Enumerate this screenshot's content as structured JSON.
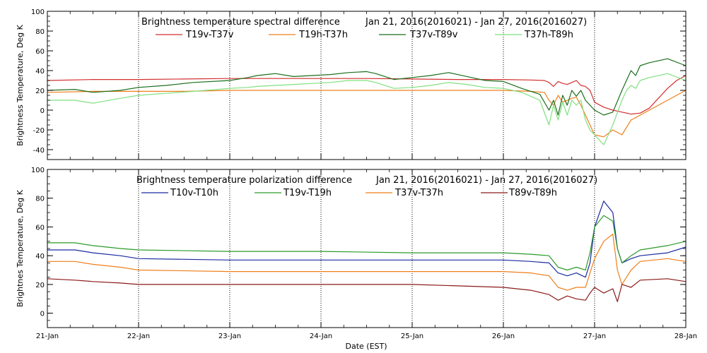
{
  "x_axis": {
    "label": "Date (EST)",
    "ticks": [
      "21-Jan",
      "22-Jan",
      "23-Jan",
      "24-Jan",
      "25-Jan",
      "26-Jan",
      "27-Jan",
      "28-Jan"
    ]
  },
  "chart_data": [
    {
      "type": "line",
      "title": "Brightness temperature spectral difference",
      "date_range": "Jan 21, 2016(2016021) - Jan 27, 2016(2016027)",
      "ylabel": "Brightness Temperature, Deg K",
      "ylim": [
        -50,
        100
      ],
      "yticks": [
        -40,
        -20,
        0,
        20,
        40,
        60,
        80,
        100
      ],
      "xlim": [
        0,
        7
      ],
      "grid": "vertical dotted at each day",
      "series": [
        {
          "name": "T19v-T37v",
          "color": "#d32f2f",
          "x": [
            0,
            0.5,
            1,
            1.5,
            2,
            2.5,
            3,
            3.5,
            4,
            4.5,
            5,
            5.3,
            5.45,
            5.5,
            5.55,
            5.6,
            5.65,
            5.7,
            5.75,
            5.8,
            5.85,
            5.9,
            5.95,
            6,
            6.1,
            6.2,
            6.3,
            6.4,
            6.5,
            6.6,
            6.7,
            6.8,
            6.9,
            7
          ],
          "y": [
            30,
            31,
            31,
            31.5,
            32,
            32,
            32,
            32,
            31.5,
            31,
            31,
            30.5,
            30,
            28,
            24,
            29,
            27,
            26,
            28,
            30,
            25,
            24,
            20,
            8,
            3,
            0,
            -2,
            -4,
            -3,
            2,
            12,
            22,
            30,
            35
          ]
        },
        {
          "name": "T19h-T37h",
          "color": "#ef7f1a",
          "x": [
            0,
            0.5,
            1,
            1.5,
            2,
            2.5,
            3,
            3.5,
            4,
            4.5,
            5,
            5.3,
            5.45,
            5.5,
            5.55,
            5.6,
            5.65,
            5.7,
            5.75,
            5.8,
            5.85,
            5.9,
            5.95,
            6,
            6.1,
            6.2,
            6.3,
            6.4,
            6.5,
            6.6,
            6.7,
            6.8,
            6.9,
            7
          ],
          "y": [
            18,
            19,
            19,
            19,
            20,
            20,
            20,
            20,
            20,
            20,
            20,
            19,
            18,
            10,
            5,
            15,
            8,
            10,
            12,
            13,
            5,
            -5,
            -15,
            -25,
            -27,
            -20,
            -25,
            -10,
            -5,
            0,
            5,
            10,
            15,
            20
          ]
        },
        {
          "name": "T37v-T89v",
          "color": "#1b6e1b",
          "x": [
            0,
            0.3,
            0.5,
            0.8,
            1,
            1.3,
            1.6,
            2,
            2.2,
            2.3,
            2.5,
            2.7,
            2.9,
            3.1,
            3.3,
            3.5,
            3.6,
            3.8,
            4,
            4.2,
            4.4,
            4.6,
            4.8,
            5,
            5.2,
            5.4,
            5.5,
            5.55,
            5.6,
            5.65,
            5.7,
            5.75,
            5.8,
            5.85,
            5.9,
            5.95,
            6,
            6.1,
            6.2,
            6.3,
            6.35,
            6.4,
            6.45,
            6.5,
            6.6,
            6.8,
            7
          ],
          "y": [
            20,
            21,
            18,
            20,
            23,
            25,
            28,
            30,
            33,
            35,
            37,
            34,
            35,
            36,
            38,
            39,
            37,
            31,
            33,
            35,
            38,
            34,
            30,
            29,
            22,
            16,
            0,
            10,
            -5,
            15,
            5,
            20,
            14,
            20,
            10,
            5,
            0,
            -5,
            -2,
            20,
            30,
            40,
            35,
            45,
            48,
            52,
            45
          ]
        },
        {
          "name": "T37h-T89h",
          "color": "#7fe07f",
          "x": [
            0,
            0.3,
            0.5,
            0.8,
            1,
            1.3,
            1.6,
            2,
            2.2,
            2.3,
            2.5,
            2.7,
            2.9,
            3.1,
            3.3,
            3.5,
            3.6,
            3.8,
            4,
            4.2,
            4.4,
            4.6,
            4.8,
            5,
            5.2,
            5.4,
            5.5,
            5.55,
            5.6,
            5.65,
            5.7,
            5.75,
            5.8,
            5.85,
            5.9,
            5.95,
            6,
            6.1,
            6.2,
            6.3,
            6.35,
            6.4,
            6.45,
            6.5,
            6.6,
            6.8,
            7
          ],
          "y": [
            10,
            10,
            7,
            12,
            15,
            17,
            19,
            22,
            23,
            24,
            25,
            26,
            27,
            28,
            30,
            30,
            28,
            22,
            23,
            25,
            28,
            26,
            23,
            22,
            18,
            10,
            -15,
            5,
            -10,
            8,
            -5,
            10,
            5,
            10,
            -10,
            -20,
            -25,
            -35,
            -15,
            10,
            20,
            25,
            22,
            30,
            33,
            37,
            30
          ]
        }
      ]
    },
    {
      "type": "line",
      "title": "Brightness temperature polarization difference",
      "date_range": "Jan 21, 2016(2016021) - Jan 27, 2016(2016027)",
      "ylabel": "Brightnes Temperature, Deg K",
      "ylim": [
        -10,
        100
      ],
      "yticks": [
        0,
        20,
        40,
        60,
        80,
        100
      ],
      "xlim": [
        0,
        7
      ],
      "grid": "vertical dotted at each day",
      "series": [
        {
          "name": "T10v-T10h",
          "color": "#1a2aa0",
          "x": [
            0,
            0.3,
            0.5,
            0.8,
            1,
            2,
            3,
            4,
            5,
            5.3,
            5.5,
            5.6,
            5.7,
            5.8,
            5.9,
            5.95,
            6,
            6.1,
            6.2,
            6.25,
            6.3,
            6.4,
            6.5,
            6.8,
            7
          ],
          "y": [
            44,
            44,
            42,
            40,
            38,
            37,
            37,
            37,
            37,
            36,
            35,
            28,
            26,
            28,
            25,
            35,
            60,
            78,
            70,
            45,
            35,
            38,
            40,
            42,
            46
          ]
        },
        {
          "name": "T19v-T19h",
          "color": "#2a9a2a",
          "x": [
            0,
            0.3,
            0.5,
            0.8,
            1,
            2,
            3,
            4,
            5,
            5.3,
            5.5,
            5.6,
            5.7,
            5.8,
            5.9,
            5.95,
            6,
            6.1,
            6.2,
            6.25,
            6.3,
            6.4,
            6.5,
            6.8,
            7
          ],
          "y": [
            49,
            49,
            47,
            45,
            44,
            43,
            43,
            42,
            42,
            41,
            40,
            32,
            30,
            32,
            30,
            42,
            60,
            68,
            64,
            45,
            35,
            40,
            44,
            47,
            50
          ]
        },
        {
          "name": "T37v-T37h",
          "color": "#ef7f1a",
          "x": [
            0,
            0.3,
            0.5,
            0.8,
            1,
            2,
            3,
            4,
            5,
            5.3,
            5.5,
            5.6,
            5.7,
            5.8,
            5.9,
            5.95,
            6,
            6.1,
            6.2,
            6.25,
            6.3,
            6.4,
            6.5,
            6.8,
            7
          ],
          "y": [
            36,
            36,
            34,
            32,
            30,
            29,
            29,
            29,
            29,
            28,
            26,
            18,
            16,
            18,
            18,
            28,
            38,
            50,
            55,
            30,
            20,
            30,
            36,
            38,
            36
          ]
        },
        {
          "name": "T89v-T89h",
          "color": "#8b1a1a",
          "x": [
            0,
            0.3,
            0.5,
            0.8,
            1,
            2,
            3,
            4,
            4.5,
            5,
            5.3,
            5.5,
            5.6,
            5.7,
            5.8,
            5.9,
            5.95,
            6,
            6.1,
            6.2,
            6.25,
            6.3,
            6.4,
            6.5,
            6.8,
            7
          ],
          "y": [
            24,
            23,
            22,
            21,
            20,
            20,
            20,
            20,
            19,
            18,
            16,
            13,
            9,
            12,
            10,
            9,
            14,
            18,
            14,
            17,
            8,
            20,
            18,
            23,
            24,
            22
          ]
        }
      ]
    }
  ]
}
